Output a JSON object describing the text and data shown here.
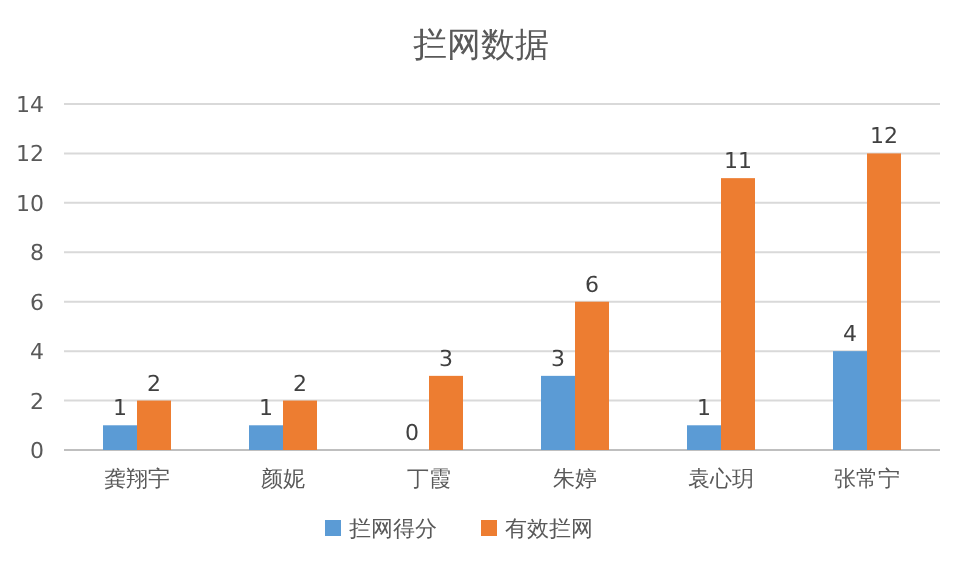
{
  "chart_data": {
    "type": "bar",
    "title": "拦网数据",
    "categories": [
      "龚翔宇",
      "颜妮",
      "丁霞",
      "朱婷",
      "袁心玥",
      "张常宁"
    ],
    "series": [
      {
        "name": "拦网得分",
        "color": "#5b9bd5",
        "values": [
          1,
          1,
          0,
          3,
          1,
          4
        ]
      },
      {
        "name": "有效拦网",
        "color": "#ed7d31",
        "values": [
          2,
          2,
          3,
          6,
          11,
          12
        ]
      }
    ],
    "ylim": [
      0,
      14
    ],
    "yticks": [
      0,
      2,
      4,
      6,
      8,
      10,
      12,
      14
    ],
    "grid": "y",
    "legend": "bottom",
    "data_labels": true
  }
}
